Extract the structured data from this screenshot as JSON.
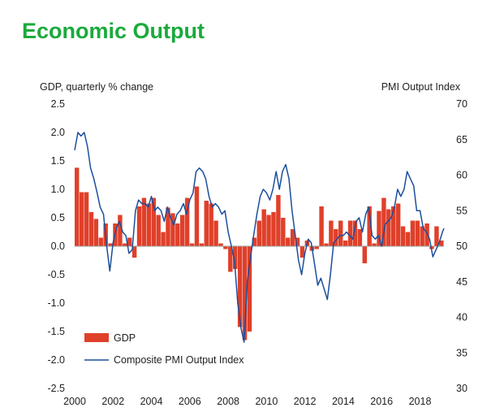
{
  "title": "Economic Output",
  "chart_data": {
    "type": "bar+line",
    "title": "Economic Output",
    "ylabel_left": "GDP, quarterly % change",
    "ylabel_right": "PMI Output Index",
    "x_ticks": [
      "2000",
      "2002",
      "2004",
      "2006",
      "2008",
      "2010",
      "2012",
      "2014",
      "2016",
      "2018"
    ],
    "x_range": [
      2000,
      2019.25
    ],
    "y_left_ticks": [
      "2.5",
      "2.0",
      "1.5",
      "1.0",
      "0.5",
      "0.0",
      "-0.5",
      "-1.0",
      "-1.5",
      "-2.0",
      "-2.5"
    ],
    "y_left_range": [
      -2.5,
      2.5
    ],
    "y_right_ticks": [
      "70",
      "65",
      "60",
      "55",
      "50",
      "45",
      "40",
      "35",
      "30"
    ],
    "y_right_range": [
      30,
      70
    ],
    "legend": {
      "placement": "bottom-left",
      "entries": [
        {
          "label": "GDP",
          "series": "gdp"
        },
        {
          "label": "Composite PMI Output Index",
          "series": "pmi"
        }
      ]
    },
    "series": [
      {
        "key": "gdp",
        "name": "GDP",
        "type": "bar",
        "axis": "left",
        "color": "#e0402a",
        "x": [
          2000.0,
          2000.25,
          2000.5,
          2000.75,
          2001.0,
          2001.25,
          2001.5,
          2001.75,
          2002.0,
          2002.25,
          2002.5,
          2002.75,
          2003.0,
          2003.25,
          2003.5,
          2003.75,
          2004.0,
          2004.25,
          2004.5,
          2004.75,
          2005.0,
          2005.25,
          2005.5,
          2005.75,
          2006.0,
          2006.25,
          2006.5,
          2006.75,
          2007.0,
          2007.25,
          2007.5,
          2007.75,
          2008.0,
          2008.25,
          2008.5,
          2008.75,
          2009.0,
          2009.25,
          2009.5,
          2009.75,
          2010.0,
          2010.25,
          2010.5,
          2010.75,
          2011.0,
          2011.25,
          2011.5,
          2011.75,
          2012.0,
          2012.25,
          2012.5,
          2012.75,
          2013.0,
          2013.25,
          2013.5,
          2013.75,
          2014.0,
          2014.25,
          2014.5,
          2014.75,
          2015.0,
          2015.25,
          2015.5,
          2015.75,
          2016.0,
          2016.25,
          2016.5,
          2016.75,
          2017.0,
          2017.25,
          2017.5,
          2017.75,
          2018.0,
          2018.25,
          2018.5,
          2018.75,
          2019.0
        ],
        "values": [
          1.38,
          0.95,
          0.95,
          0.6,
          0.48,
          0.15,
          0.4,
          0.05,
          0.4,
          0.55,
          0.05,
          0.15,
          -0.2,
          0.7,
          0.85,
          0.75,
          0.85,
          0.55,
          0.25,
          0.68,
          0.58,
          0.4,
          0.55,
          0.85,
          0.05,
          1.05,
          0.05,
          0.8,
          0.75,
          0.45,
          0.05,
          -0.05,
          -0.45,
          -0.4,
          -1.42,
          -1.65,
          -1.5,
          0.15,
          0.45,
          0.65,
          0.55,
          0.6,
          0.9,
          0.5,
          0.15,
          0.3,
          0.15,
          -0.2,
          0.1,
          -0.08,
          -0.05,
          0.7,
          0.05,
          0.45,
          0.3,
          0.45,
          0.1,
          0.45,
          0.45,
          0.3,
          -0.3,
          0.7,
          0.05,
          0.62,
          0.85,
          0.65,
          0.7,
          0.75,
          0.35,
          0.25,
          0.45,
          0.45,
          0.35,
          0.4,
          -0.05,
          0.35,
          0.1
        ]
      },
      {
        "key": "pmi",
        "name": "Composite PMI Output Index",
        "type": "line",
        "axis": "right",
        "color": "#1b4f9c",
        "x": [
          2000.0,
          2000.17,
          2000.33,
          2000.5,
          2000.67,
          2000.83,
          2001.0,
          2001.17,
          2001.33,
          2001.5,
          2001.67,
          2001.83,
          2002.0,
          2002.17,
          2002.33,
          2002.5,
          2002.67,
          2002.83,
          2003.0,
          2003.17,
          2003.33,
          2003.5,
          2003.67,
          2003.83,
          2004.0,
          2004.17,
          2004.33,
          2004.5,
          2004.67,
          2004.83,
          2005.0,
          2005.17,
          2005.33,
          2005.5,
          2005.67,
          2005.83,
          2006.0,
          2006.17,
          2006.33,
          2006.5,
          2006.67,
          2006.83,
          2007.0,
          2007.17,
          2007.33,
          2007.5,
          2007.67,
          2007.83,
          2008.0,
          2008.17,
          2008.33,
          2008.5,
          2008.67,
          2008.83,
          2009.0,
          2009.17,
          2009.33,
          2009.5,
          2009.67,
          2009.83,
          2010.0,
          2010.17,
          2010.33,
          2010.5,
          2010.67,
          2010.83,
          2011.0,
          2011.17,
          2011.33,
          2011.5,
          2011.67,
          2011.83,
          2012.0,
          2012.17,
          2012.33,
          2012.5,
          2012.67,
          2012.83,
          2013.0,
          2013.17,
          2013.33,
          2013.5,
          2013.67,
          2013.83,
          2014.0,
          2014.17,
          2014.33,
          2014.5,
          2014.67,
          2014.83,
          2015.0,
          2015.17,
          2015.33,
          2015.5,
          2015.67,
          2015.83,
          2016.0,
          2016.17,
          2016.33,
          2016.5,
          2016.67,
          2016.83,
          2017.0,
          2017.17,
          2017.33,
          2017.5,
          2017.67,
          2017.83,
          2018.0,
          2018.17,
          2018.33,
          2018.5,
          2018.67,
          2018.83,
          2019.0,
          2019.17,
          2019.25
        ],
        "values": [
          63.5,
          66.0,
          65.5,
          66.0,
          64.0,
          61.0,
          59.5,
          57.5,
          55.5,
          54.5,
          50.0,
          46.5,
          50.5,
          52.5,
          53.5,
          52.0,
          51.5,
          49.0,
          49.5,
          55.0,
          56.5,
          56.0,
          56.0,
          55.5,
          57.0,
          55.0,
          55.5,
          55.0,
          53.5,
          55.5,
          54.0,
          53.0,
          54.5,
          55.0,
          56.0,
          54.5,
          56.5,
          57.5,
          60.5,
          61.0,
          60.5,
          59.5,
          57.0,
          55.5,
          56.0,
          55.5,
          54.5,
          55.0,
          52.0,
          50.0,
          48.0,
          42.0,
          38.5,
          36.5,
          45.0,
          48.5,
          51.5,
          54.5,
          57.0,
          58.0,
          57.5,
          56.5,
          58.0,
          60.5,
          58.0,
          60.5,
          61.5,
          59.5,
          55.0,
          51.5,
          48.0,
          46.0,
          49.0,
          51.0,
          50.5,
          47.5,
          44.5,
          45.5,
          44.0,
          42.5,
          46.0,
          50.5,
          51.0,
          51.5,
          51.5,
          52.0,
          51.5,
          51.0,
          53.5,
          54.0,
          52.0,
          54.5,
          55.5,
          51.5,
          51.0,
          51.5,
          50.0,
          53.0,
          53.5,
          54.0,
          55.5,
          58.0,
          57.0,
          58.0,
          60.5,
          59.5,
          58.5,
          55.0,
          55.0,
          52.5,
          52.0,
          51.0,
          48.5,
          49.5,
          50.5,
          52.0,
          52.5
        ]
      }
    ]
  }
}
